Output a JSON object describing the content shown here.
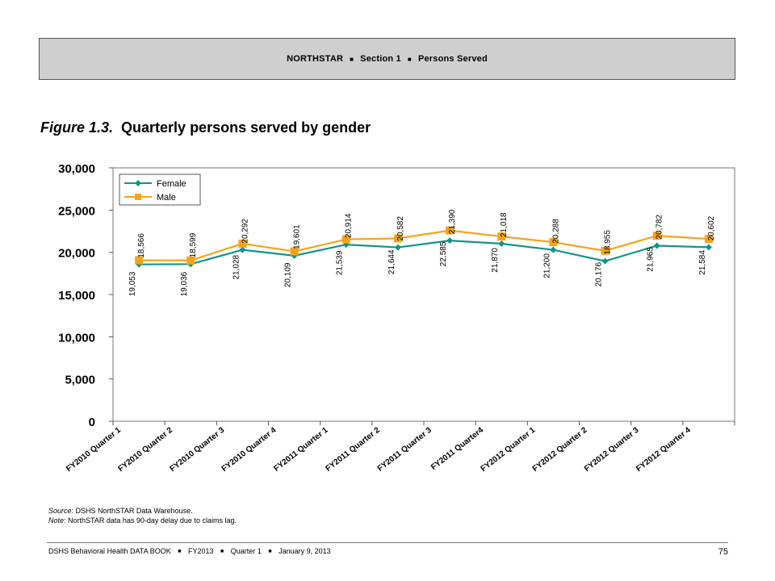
{
  "header": {
    "segments": [
      "NORTHSTAR",
      "Section 1",
      "Persons Served"
    ],
    "separator": "■"
  },
  "figure": {
    "label": "Figure 1.3.",
    "title": "Quarterly persons served by gender"
  },
  "chart_data": {
    "type": "line",
    "categories": [
      "FY2010 Quarter 1",
      "FY2010 Quarter 2",
      "FY2010 Quarter 3",
      "FY2010 Quarter 4",
      "FY2011 Quarter 1",
      "FY2011 Quarter 2",
      "FY2011 Quarter 3",
      "FY2011 Quarter4",
      "FY2012 Quarter 1",
      "FY2012 Quarter 2",
      "FY2012 Quarter 3",
      "FY2012 Quarter 4"
    ],
    "series": [
      {
        "name": "Female",
        "color": "#12948a",
        "marker": "diamond",
        "values": [
          18566,
          18599,
          20292,
          19601,
          20914,
          20582,
          21390,
          21018,
          20288,
          18955,
          20782,
          20602
        ]
      },
      {
        "name": "Male",
        "color": "#f5a31b",
        "marker": "square",
        "values": [
          19053,
          19036,
          21028,
          20109,
          21539,
          21644,
          22585,
          21870,
          21200,
          20176,
          21965,
          21584
        ]
      }
    ],
    "data_labels": [
      [
        "18,566",
        "18,599",
        "20,292",
        "19,601",
        "20,914",
        "20,582",
        "21,390",
        "21,018",
        "20,288",
        "18,955",
        "20,782",
        "20,602"
      ],
      [
        "19,053",
        "19,036",
        "21,028",
        "20,109",
        "21,539",
        "21,644",
        "22,585",
        "21,870",
        "21,200",
        "20,176",
        "21,965",
        "21,584"
      ]
    ],
    "ylim": [
      0,
      30000
    ],
    "yticks": [
      0,
      5000,
      10000,
      15000,
      20000,
      25000,
      30000
    ],
    "ytick_labels": [
      "0",
      "5,000",
      "10,000",
      "15,000",
      "20,000",
      "25,000",
      "30,000"
    ],
    "grid": false,
    "legend_position": "top-left",
    "xlabel": "",
    "ylabel": ""
  },
  "notes": {
    "source_label": "Source",
    "source_text": ": DSHS NorthSTAR Data Warehouse.",
    "note_label": "Note",
    "note_text": ": NorthSTAR data has 90-day delay due to claims lag."
  },
  "footer": {
    "segments": [
      "DSHS Behavioral Health DATA BOOK",
      "FY2013",
      "Quarter 1",
      "January 9, 2013"
    ],
    "separator": "■",
    "page_number": "75"
  }
}
